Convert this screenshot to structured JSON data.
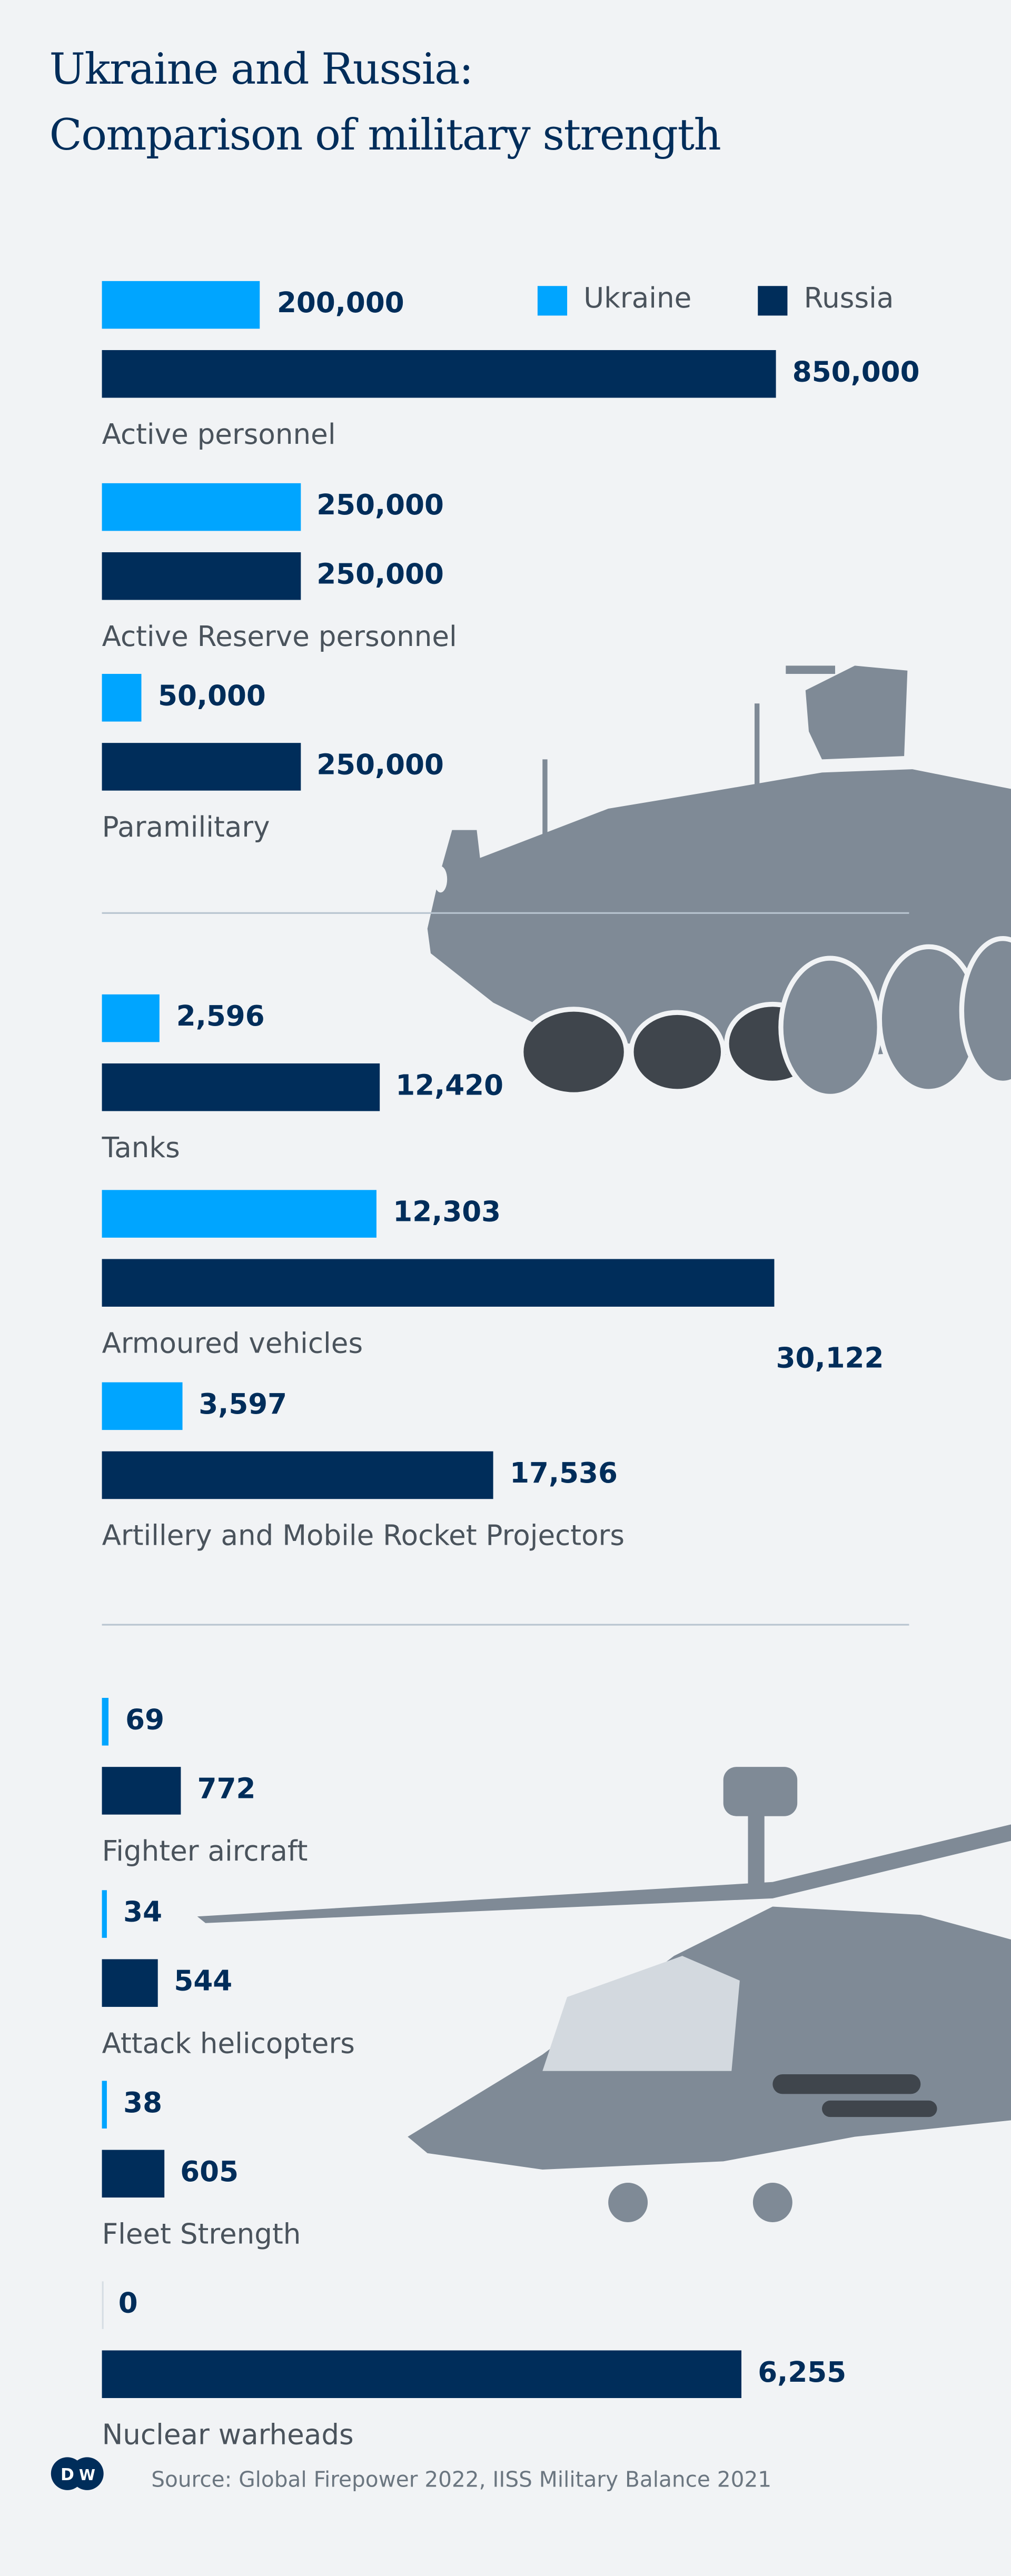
{
  "title_line1": "Ukraine and Russia:",
  "title_line2": "Comparison of military strength",
  "legend": [
    {
      "name": "Ukraine",
      "color": "#00a5ff"
    },
    {
      "name": "Russia",
      "color": "#002d5a"
    }
  ],
  "source": "Source: Global Firepower 2022, IISS Military Balance 2021",
  "logo_text": "DW",
  "chart_data": {
    "type": "bar",
    "orientation": "horizontal",
    "categories": [
      "Active personnel",
      "Active Reserve personnel",
      "Paramilitary",
      "Tanks",
      "Armoured vehicles",
      "Artillery and Mobile Rocket Projectors",
      "Fighter aircraft",
      "Attack helicopters",
      "Fleet Strength",
      "Nuclear warheads"
    ],
    "series": [
      {
        "name": "Ukraine",
        "color": "#00a5ff",
        "values": [
          200000,
          250000,
          50000,
          2596,
          12303,
          3597,
          69,
          34,
          38,
          0
        ],
        "labels": [
          "200,000",
          "250,000",
          "50,000",
          "2,596",
          "12,303",
          "3,597",
          "69",
          "34",
          "38",
          "0"
        ]
      },
      {
        "name": "Russia",
        "color": "#002d5a",
        "values": [
          850000,
          250000,
          250000,
          12420,
          30122,
          17536,
          772,
          544,
          605,
          6255
        ],
        "labels": [
          "850,000",
          "250,000",
          "250,000",
          "12,420",
          "30,122",
          "17,536",
          "772",
          "544",
          "605",
          "6,255"
        ]
      }
    ],
    "groups": [
      {
        "categories": [
          "Active personnel",
          "Active Reserve personnel",
          "Paramilitary"
        ]
      },
      {
        "categories": [
          "Tanks",
          "Armoured vehicles",
          "Artillery and Mobile Rocket Projectors"
        ]
      },
      {
        "categories": [
          "Fighter aircraft",
          "Attack helicopters",
          "Fleet Strength",
          "Nuclear warheads"
        ]
      }
    ],
    "grid": false,
    "legend_position": "top-right"
  }
}
